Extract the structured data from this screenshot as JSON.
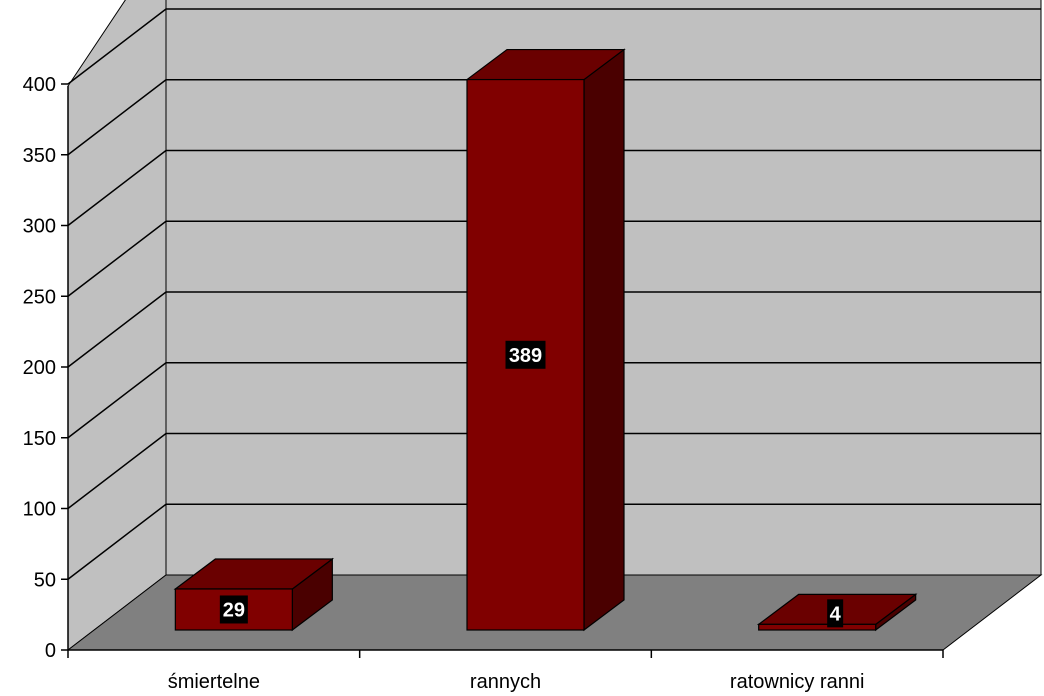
{
  "chart_data": {
    "type": "bar",
    "title": "",
    "xlabel": "",
    "ylabel": "",
    "categories": [
      "śmiertelne",
      "rannych",
      "ratownicy ranni"
    ],
    "values": [
      29,
      389,
      4
    ],
    "ylim": [
      0,
      400
    ],
    "yticks": [
      0,
      50,
      100,
      150,
      200,
      250,
      300,
      350,
      400
    ],
    "grid": true,
    "legend": false,
    "style": "3d-column",
    "colors": {
      "bar_front": "#800000",
      "bar_side": "#4a0000",
      "bar_top": "#6a0000",
      "wall": "#c0c0c0",
      "floor": "#808080",
      "label_bg": "#000000",
      "label_text": "#ffffff"
    }
  }
}
